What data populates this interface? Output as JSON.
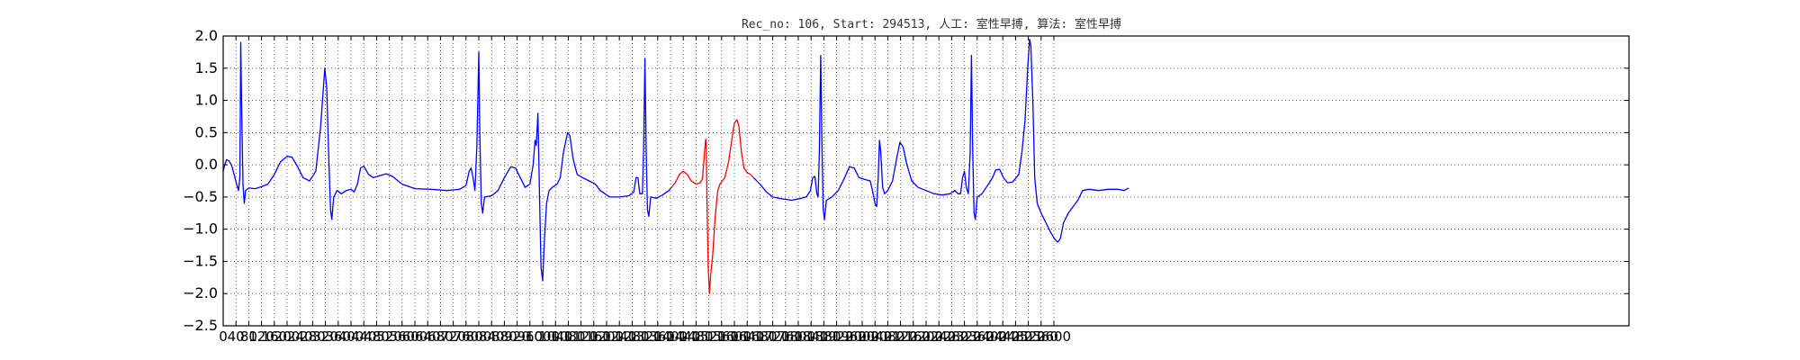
{
  "chart_data": {
    "type": "line",
    "title": "Rec_no: 106, Start: 294513, 人工: 室性早搏, 算法: 室性早搏",
    "xlabel": "",
    "ylabel": "",
    "xlim": [
      0,
      4400
    ],
    "ylim": [
      -2.5,
      2.0
    ],
    "grid": true,
    "x_ticks": [
      0,
      40,
      80,
      120,
      160,
      200,
      240,
      280,
      320,
      360,
      400,
      440,
      480,
      520,
      560,
      600,
      640,
      680,
      720,
      760,
      800,
      840,
      880,
      920,
      960,
      1000,
      1040,
      1080,
      1120,
      1160,
      1200,
      1240,
      1280,
      1320,
      1360,
      1400,
      1440,
      1480,
      1520,
      1560,
      1600,
      1640,
      1680,
      1720,
      1760,
      1800,
      1840,
      1880,
      1920,
      1960,
      2000,
      2040,
      2080,
      2120,
      2160,
      2200,
      2240,
      2280,
      2320,
      2360,
      2400,
      2440,
      2480,
      2520,
      2560,
      2600
    ],
    "y_ticks": [
      2.0,
      1.5,
      1.0,
      0.5,
      0.0,
      -0.5,
      -1.0,
      -1.5,
      -2.0,
      -2.5
    ],
    "y_tick_labels": [
      "2.0",
      "1.5",
      "1.0",
      "0.5",
      "0.0",
      "−0.5",
      "−1.0",
      "−1.5",
      "−2.0",
      "−2.5"
    ],
    "series": [
      {
        "color": "#0000ff",
        "points": [
          [
            0,
            -0.1
          ],
          [
            4,
            -0.02
          ],
          [
            10,
            0.08
          ],
          [
            18,
            0.06
          ],
          [
            26,
            0.0
          ],
          [
            34,
            -0.15
          ],
          [
            42,
            -0.3
          ],
          [
            48,
            -0.4
          ],
          [
            52,
            -0.2
          ],
          [
            55,
            1.9
          ],
          [
            58,
            0.8
          ],
          [
            62,
            -0.3
          ],
          [
            66,
            -0.6
          ],
          [
            70,
            -0.4
          ],
          [
            80,
            -0.36
          ],
          [
            100,
            -0.37
          ],
          [
            120,
            -0.34
          ],
          [
            140,
            -0.3
          ],
          [
            160,
            -0.15
          ],
          [
            180,
            0.05
          ],
          [
            200,
            0.13
          ],
          [
            215,
            0.12
          ],
          [
            230,
            0.0
          ],
          [
            250,
            -0.2
          ],
          [
            270,
            -0.25
          ],
          [
            290,
            -0.1
          ],
          [
            305,
            0.6
          ],
          [
            318,
            1.5
          ],
          [
            324,
            1.2
          ],
          [
            330,
            0.2
          ],
          [
            336,
            -0.7
          ],
          [
            340,
            -0.85
          ],
          [
            346,
            -0.5
          ],
          [
            356,
            -0.4
          ],
          [
            370,
            -0.45
          ],
          [
            385,
            -0.4
          ],
          [
            400,
            -0.38
          ],
          [
            410,
            -0.42
          ],
          [
            420,
            -0.3
          ],
          [
            430,
            -0.05
          ],
          [
            440,
            -0.02
          ],
          [
            455,
            -0.15
          ],
          [
            470,
            -0.2
          ],
          [
            490,
            -0.17
          ],
          [
            510,
            -0.14
          ],
          [
            530,
            -0.18
          ],
          [
            560,
            -0.3
          ],
          [
            600,
            -0.37
          ],
          [
            650,
            -0.38
          ],
          [
            700,
            -0.4
          ],
          [
            740,
            -0.38
          ],
          [
            760,
            -0.32
          ],
          [
            770,
            -0.1
          ],
          [
            776,
            -0.05
          ],
          [
            782,
            -0.2
          ],
          [
            788,
            -0.4
          ],
          [
            794,
            0.3
          ],
          [
            800,
            1.75
          ],
          [
            803,
            0.5
          ],
          [
            808,
            -0.6
          ],
          [
            812,
            -0.75
          ],
          [
            818,
            -0.5
          ],
          [
            840,
            -0.48
          ],
          [
            860,
            -0.4
          ],
          [
            880,
            -0.2
          ],
          [
            900,
            -0.03
          ],
          [
            915,
            -0.05
          ],
          [
            930,
            -0.2
          ],
          [
            945,
            -0.35
          ],
          [
            960,
            -0.3
          ],
          [
            970,
            0.0
          ],
          [
            976,
            0.38
          ],
          [
            980,
            0.3
          ],
          [
            985,
            0.8
          ],
          [
            990,
            -0.5
          ],
          [
            995,
            -1.6
          ],
          [
            1000,
            -1.8
          ],
          [
            1005,
            -1.2
          ],
          [
            1012,
            -0.6
          ],
          [
            1020,
            -0.4
          ],
          [
            1030,
            -0.35
          ],
          [
            1045,
            -0.3
          ],
          [
            1055,
            -0.2
          ],
          [
            1065,
            0.2
          ],
          [
            1078,
            0.5
          ],
          [
            1085,
            0.45
          ],
          [
            1095,
            0.1
          ],
          [
            1108,
            -0.15
          ],
          [
            1125,
            -0.2
          ],
          [
            1145,
            -0.25
          ],
          [
            1165,
            -0.3
          ],
          [
            1180,
            -0.4
          ],
          [
            1195,
            -0.45
          ],
          [
            1210,
            -0.5
          ],
          [
            1240,
            -0.5
          ],
          [
            1270,
            -0.48
          ],
          [
            1285,
            -0.42
          ],
          [
            1292,
            -0.2
          ],
          [
            1298,
            -0.2
          ],
          [
            1304,
            -0.45
          ],
          [
            1312,
            -0.45
          ],
          [
            1316,
            0.3
          ],
          [
            1320,
            1.65
          ],
          [
            1324,
            0.2
          ],
          [
            1328,
            -0.7
          ],
          [
            1332,
            -0.8
          ],
          [
            1338,
            -0.5
          ],
          [
            1355,
            -0.52
          ],
          [
            1375,
            -0.47
          ],
          [
            1395,
            -0.4
          ],
          [
            1400,
            -0.37
          ]
        ]
      },
      {
        "color": "#ff0000",
        "points": [
          [
            1400,
            -0.37
          ],
          [
            1415,
            -0.28
          ],
          [
            1428,
            -0.15
          ],
          [
            1440,
            -0.1
          ],
          [
            1452,
            -0.15
          ],
          [
            1465,
            -0.25
          ],
          [
            1480,
            -0.3
          ],
          [
            1492,
            -0.28
          ],
          [
            1500,
            -0.22
          ],
          [
            1505,
            0.1
          ],
          [
            1510,
            0.4
          ],
          [
            1512,
            0.3
          ],
          [
            1514,
            -0.5
          ],
          [
            1518,
            -1.6
          ],
          [
            1522,
            -2.0
          ],
          [
            1526,
            -1.7
          ],
          [
            1532,
            -1.4
          ],
          [
            1540,
            -0.8
          ],
          [
            1548,
            -0.4
          ],
          [
            1555,
            -0.3
          ],
          [
            1562,
            -0.25
          ],
          [
            1570,
            -0.2
          ],
          [
            1582,
            0.05
          ],
          [
            1592,
            0.4
          ],
          [
            1600,
            0.65
          ],
          [
            1608,
            0.7
          ],
          [
            1614,
            0.6
          ],
          [
            1622,
            0.2
          ],
          [
            1630,
            -0.05
          ],
          [
            1640,
            -0.12
          ],
          [
            1650,
            -0.15
          ],
          [
            1660,
            -0.2
          ]
        ]
      },
      {
        "color": "#0000ff",
        "points": [
          [
            1660,
            -0.2
          ],
          [
            1680,
            -0.3
          ],
          [
            1700,
            -0.42
          ],
          [
            1720,
            -0.5
          ],
          [
            1750,
            -0.53
          ],
          [
            1780,
            -0.55
          ],
          [
            1810,
            -0.52
          ],
          [
            1825,
            -0.5
          ],
          [
            1838,
            -0.4
          ],
          [
            1845,
            -0.2
          ],
          [
            1852,
            -0.18
          ],
          [
            1858,
            -0.45
          ],
          [
            1862,
            -0.5
          ],
          [
            1866,
            0.2
          ],
          [
            1870,
            1.7
          ],
          [
            1874,
            0.3
          ],
          [
            1878,
            -0.7
          ],
          [
            1882,
            -0.85
          ],
          [
            1888,
            -0.55
          ],
          [
            1905,
            -0.5
          ],
          [
            1925,
            -0.4
          ],
          [
            1945,
            -0.2
          ],
          [
            1960,
            -0.03
          ],
          [
            1975,
            -0.05
          ],
          [
            1990,
            -0.2
          ],
          [
            2010,
            -0.23
          ],
          [
            2025,
            -0.25
          ],
          [
            2032,
            -0.4
          ],
          [
            2040,
            -0.6
          ],
          [
            2045,
            -0.65
          ],
          [
            2050,
            -0.2
          ],
          [
            2054,
            0.38
          ],
          [
            2058,
            0.2
          ],
          [
            2064,
            -0.35
          ],
          [
            2070,
            -0.45
          ],
          [
            2080,
            -0.4
          ],
          [
            2095,
            -0.25
          ],
          [
            2108,
            0.1
          ],
          [
            2118,
            0.35
          ],
          [
            2128,
            0.28
          ],
          [
            2140,
            0.0
          ],
          [
            2155,
            -0.25
          ],
          [
            2175,
            -0.35
          ],
          [
            2200,
            -0.4
          ],
          [
            2225,
            -0.45
          ],
          [
            2250,
            -0.47
          ],
          [
            2275,
            -0.45
          ],
          [
            2290,
            -0.4
          ],
          [
            2300,
            -0.45
          ],
          [
            2308,
            -0.45
          ],
          [
            2314,
            -0.2
          ],
          [
            2320,
            -0.1
          ],
          [
            2326,
            -0.35
          ],
          [
            2332,
            -0.45
          ],
          [
            2338,
            0.2
          ],
          [
            2342,
            1.7
          ],
          [
            2346,
            0.2
          ],
          [
            2350,
            -0.75
          ],
          [
            2354,
            -0.85
          ],
          [
            2360,
            -0.5
          ],
          [
            2375,
            -0.45
          ],
          [
            2395,
            -0.3
          ],
          [
            2408,
            -0.2
          ],
          [
            2418,
            -0.08
          ],
          [
            2430,
            -0.07
          ],
          [
            2442,
            -0.2
          ],
          [
            2455,
            -0.28
          ],
          [
            2470,
            -0.27
          ],
          [
            2482,
            -0.2
          ],
          [
            2490,
            -0.15
          ],
          [
            2500,
            0.2
          ],
          [
            2510,
            0.7
          ],
          [
            2518,
            1.5
          ],
          [
            2524,
            1.95
          ],
          [
            2528,
            1.85
          ],
          [
            2534,
            1.0
          ],
          [
            2540,
            -0.2
          ],
          [
            2548,
            -0.6
          ],
          [
            2560,
            -0.75
          ],
          [
            2575,
            -0.9
          ],
          [
            2590,
            -1.05
          ],
          [
            2602,
            -1.15
          ],
          [
            2612,
            -1.2
          ],
          [
            2620,
            -1.15
          ],
          [
            2630,
            -0.9
          ],
          [
            2645,
            -0.75
          ],
          [
            2660,
            -0.65
          ],
          [
            2675,
            -0.55
          ],
          [
            2690,
            -0.4
          ],
          [
            2710,
            -0.38
          ],
          [
            2740,
            -0.4
          ],
          [
            2770,
            -0.38
          ],
          [
            2800,
            -0.38
          ],
          [
            2820,
            -0.4
          ],
          [
            2834,
            -0.36
          ]
        ]
      }
    ]
  }
}
